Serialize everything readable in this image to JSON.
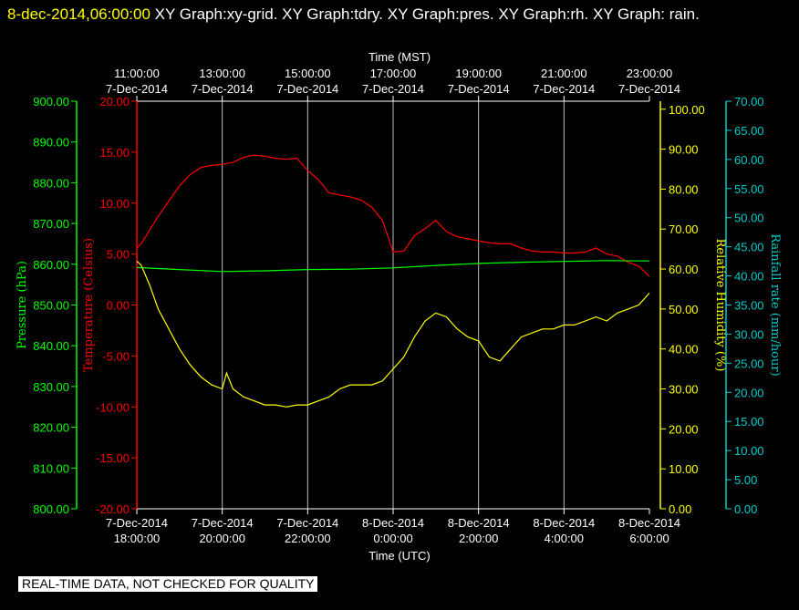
{
  "header": {
    "timestamp": "8-dec-2014,06:00:00",
    "titles": "  XY Graph:xy-grid.  XY Graph:tdry.  XY Graph:pres.  XY Graph:rh.  XY Graph: rain."
  },
  "notice": "REAL-TIME DATA, NOT CHECKED FOR QUALITY",
  "colors": {
    "background": "#000000",
    "temperature": "#ff0000",
    "pressure": "#00ff00",
    "humidity": "#ffff00",
    "rain": "#00cccc",
    "grid": "#ffffff"
  },
  "chart_data": {
    "type": "line",
    "grid": true,
    "x_bottom": {
      "label": "Time (UTC)",
      "ticks": [
        {
          "date": "7-Dec-2014",
          "time": "18:00:00"
        },
        {
          "date": "7-Dec-2014",
          "time": "20:00:00"
        },
        {
          "date": "7-Dec-2014",
          "time": "22:00:00"
        },
        {
          "date": "8-Dec-2014",
          "time": "0:00:00"
        },
        {
          "date": "8-Dec-2014",
          "time": "2:00:00"
        },
        {
          "date": "8-Dec-2014",
          "time": "4:00:00"
        },
        {
          "date": "8-Dec-2014",
          "time": "6:00:00"
        }
      ]
    },
    "x_top": {
      "label": "Time (MST)",
      "ticks": [
        {
          "time": "11:00:00",
          "date": "7-Dec-2014"
        },
        {
          "time": "13:00:00",
          "date": "7-Dec-2014"
        },
        {
          "time": "15:00:00",
          "date": "7-Dec-2014"
        },
        {
          "time": "17:00:00",
          "date": "7-Dec-2014"
        },
        {
          "time": "19:00:00",
          "date": "7-Dec-2014"
        },
        {
          "time": "21:00:00",
          "date": "7-Dec-2014"
        },
        {
          "time": "23:00:00",
          "date": "7-Dec-2014"
        }
      ]
    },
    "axes": {
      "pressure": {
        "label": "Pressure (hPa)",
        "ylim": [
          800,
          900
        ],
        "ticks": [
          "800.00",
          "810.00",
          "820.00",
          "830.00",
          "840.00",
          "850.00",
          "860.00",
          "870.00",
          "880.00",
          "890.00",
          "900.00"
        ]
      },
      "temperature": {
        "label": "Temperature (Celsius)",
        "ylim": [
          -20,
          20
        ],
        "ticks": [
          "-20.00",
          "-15.00",
          "-10.00",
          "-5.00",
          "0.00",
          "5.00",
          "10.00",
          "15.00",
          "20.00"
        ]
      },
      "humidity": {
        "label": "Relative Humidity (%)",
        "ylim": [
          0,
          102
        ],
        "ticks": [
          "0.00",
          "10.00",
          "20.00",
          "30.00",
          "40.00",
          "50.00",
          "60.00",
          "70.00",
          "80.00",
          "90.00",
          "100.00"
        ]
      },
      "rain": {
        "label": "Rainfall rate (mm/hour)",
        "ylim": [
          0,
          70
        ],
        "ticks": [
          "0.00",
          "5.00",
          "10.00",
          "15.00",
          "20.00",
          "25.00",
          "30.00",
          "35.00",
          "40.00",
          "45.00",
          "50.00",
          "55.00",
          "60.00",
          "65.00",
          "70.00"
        ]
      }
    },
    "series": [
      {
        "axis": "temperature",
        "x": [
          0,
          0.1,
          0.25,
          0.5,
          0.75,
          1.0,
          1.25,
          1.5,
          1.75,
          2.0,
          2.25,
          2.5,
          2.75,
          3.0,
          3.25,
          3.5,
          3.75,
          4.0,
          4.25,
          4.5,
          4.75,
          5.0,
          5.25,
          5.5,
          5.75,
          6.0,
          6.25,
          6.5,
          6.75,
          7.0,
          7.25,
          7.5,
          7.75,
          8.0,
          8.25,
          8.5,
          8.75,
          9.0,
          9.25,
          9.5,
          9.75,
          10.0,
          10.25,
          10.5,
          10.75,
          11.0,
          11.25,
          11.5,
          11.75,
          12.0
        ],
        "y": [
          5.6,
          6.0,
          7.0,
          8.7,
          10.2,
          11.7,
          12.8,
          13.5,
          13.7,
          13.8,
          14.0,
          14.5,
          14.7,
          14.6,
          14.4,
          14.3,
          14.4,
          13.2,
          12.3,
          11.0,
          10.8,
          10.6,
          10.3,
          9.6,
          8.3,
          5.2,
          5.3,
          6.8,
          7.5,
          8.3,
          7.2,
          6.7,
          6.5,
          6.3,
          6.1,
          6.0,
          6.0,
          5.6,
          5.3,
          5.2,
          5.2,
          5.1,
          5.1,
          5.2,
          5.6,
          5.0,
          4.8,
          4.2,
          3.8,
          2.8
        ]
      },
      {
        "axis": "pressure",
        "x": [
          0,
          1,
          2,
          3,
          4,
          5,
          6,
          7,
          8,
          9,
          10,
          11,
          12
        ],
        "y": [
          859.2,
          858.7,
          858.2,
          858.4,
          858.7,
          858.8,
          859.1,
          859.7,
          860.2,
          860.5,
          860.7,
          860.9,
          860.8
        ]
      },
      {
        "axis": "humidity",
        "x": [
          0,
          0.1,
          0.3,
          0.5,
          0.75,
          1.0,
          1.25,
          1.5,
          1.75,
          2.0,
          2.1,
          2.25,
          2.5,
          2.75,
          3.0,
          3.25,
          3.5,
          3.75,
          4.0,
          4.25,
          4.5,
          4.75,
          5.0,
          5.25,
          5.5,
          5.75,
          6.0,
          6.25,
          6.5,
          6.75,
          7.0,
          7.25,
          7.5,
          7.75,
          8.0,
          8.25,
          8.5,
          8.75,
          9.0,
          9.25,
          9.5,
          9.75,
          10.0,
          10.25,
          10.5,
          10.75,
          11.0,
          11.25,
          11.5,
          11.75,
          12.0
        ],
        "y": [
          62,
          61,
          56,
          50,
          45,
          40,
          36,
          33,
          31,
          30,
          34,
          30,
          28,
          27,
          26,
          26,
          25.5,
          26,
          26,
          27,
          28,
          30,
          31,
          31,
          31,
          32,
          35,
          38,
          43,
          47,
          49,
          48,
          45,
          43,
          42,
          38,
          37,
          40,
          43,
          44,
          45,
          45,
          46,
          46,
          47,
          48,
          47,
          49,
          50,
          51,
          54
        ]
      },
      {
        "axis": "rain",
        "x": [],
        "y": []
      }
    ]
  }
}
